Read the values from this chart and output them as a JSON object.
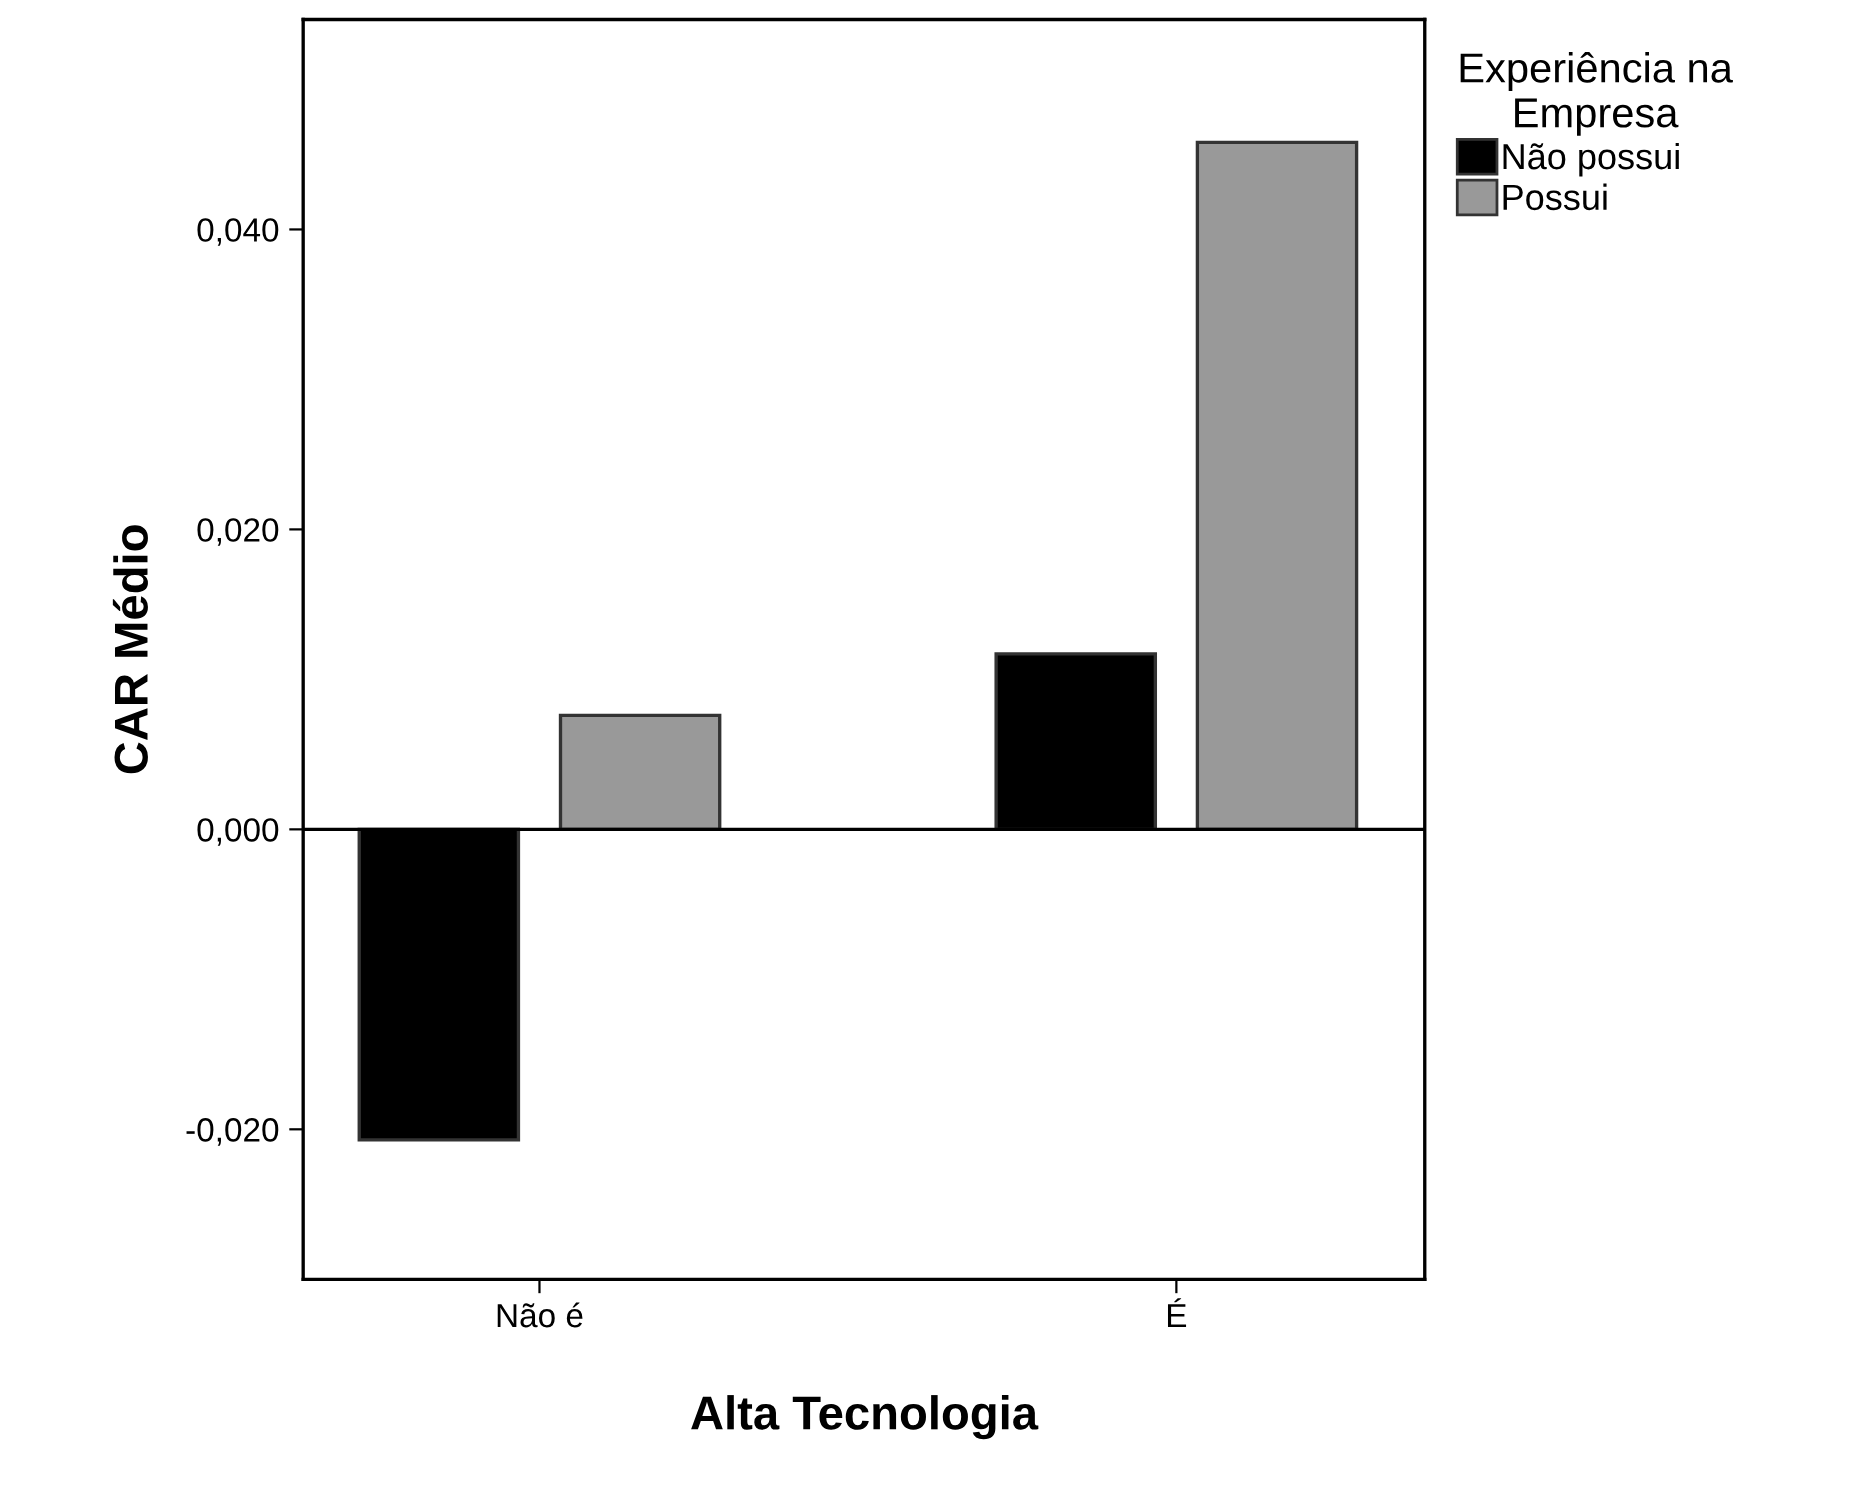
{
  "chart_data": {
    "type": "bar",
    "xlabel": "Alta Tecnologia",
    "ylabel": "CAR Médio",
    "legend_title": "Experiência na\nEmpresa",
    "categories": [
      "Não é",
      "É"
    ],
    "series": [
      {
        "name": "Não possui",
        "color": "#000000",
        "values": [
          -0.0207,
          0.0117
        ]
      },
      {
        "name": "Possui",
        "color": "#999999",
        "values": [
          0.0076,
          0.0458
        ]
      }
    ],
    "ylim": [
      -0.03,
      0.054
    ],
    "yticks": [
      {
        "value": -0.02,
        "label": "-0,020"
      },
      {
        "value": 0,
        "label": "0,000"
      },
      {
        "value": 0.02,
        "label": "0,020"
      },
      {
        "value": 0.04,
        "label": "0,040"
      }
    ],
    "ref_lines": [
      {
        "axis": "y",
        "value": 0,
        "color": "#000000"
      }
    ],
    "legend": "top right",
    "grid": false
  }
}
